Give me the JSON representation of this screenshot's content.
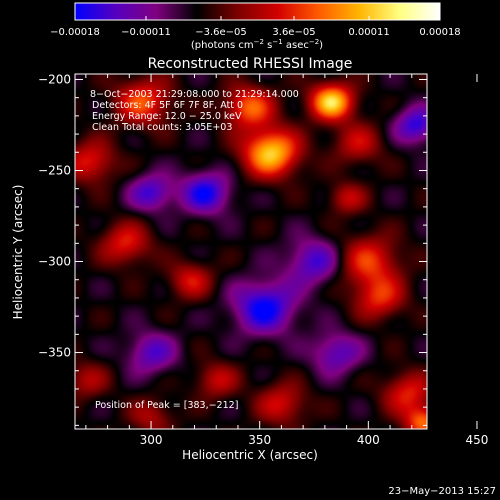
{
  "chart_data": {
    "type": "heatmap",
    "title": "Reconstructed RHESSI Image",
    "xlabel": "Heliocentric X (arcsec)",
    "ylabel": "Heliocentric Y (arcsec)",
    "xlim": [
      265,
      427
    ],
    "ylim": [
      -392,
      -197
    ],
    "x_ticks": [
      300,
      350,
      400,
      450
    ],
    "x_tick_labels": [
      "300",
      "350",
      "400",
      "450"
    ],
    "y_ticks": [
      -200,
      -250,
      -300,
      -350
    ],
    "y_tick_labels": [
      "−200",
      "−250",
      "−300",
      "−350"
    ],
    "colorbar": {
      "ticks": [
        -0.00018,
        -0.00011,
        -3.6e-05,
        3.6e-05,
        0.00011,
        0.00018
      ],
      "tick_labels": [
        "−0.00018",
        "−0.00011",
        "−3.6e−05",
        "3.6e−05",
        "0.00011",
        "0.00018"
      ],
      "range": [
        -0.00018,
        0.00018
      ],
      "unit_label": {
        "main": "(photons cm",
        "sup1": "−2",
        "mid1": " s",
        "sup2": "−1",
        "mid2": " asec",
        "sup3": "−2",
        "end": ")"
      },
      "colors": [
        "#0000ff",
        "#5500c0",
        "#800080",
        "#000000",
        "#7a0000",
        "#d20000",
        "#ff5a00",
        "#ffb400",
        "#ffff80",
        "#ffffff"
      ]
    },
    "annotations": [
      " 8−Oct−2003 21:29:08.000 to 21:29:14.000",
      "Detectors: 4F 5F 6F 7F 8F, Att 0",
      "Energy Range: 12.0 − 25.0 keV",
      "Clean    Total counts: 3.05E+03"
    ],
    "peak_label": "Position of Peak = [383,−212]",
    "peak": {
      "x": 383,
      "y": -212
    },
    "sources": [
      {
        "x": 355,
        "y": -240,
        "amp": 0.000175,
        "sigma": 9
      },
      {
        "x": 383,
        "y": -212,
        "amp": 0.00018,
        "sigma": 7
      },
      {
        "x": 345,
        "y": -215,
        "amp": 0.00012,
        "sigma": 8
      },
      {
        "x": 296,
        "y": -212,
        "amp": 0.00011,
        "sigma": 9
      },
      {
        "x": 272,
        "y": -245,
        "amp": 9e-05,
        "sigma": 8
      },
      {
        "x": 288,
        "y": -290,
        "amp": 9e-05,
        "sigma": 8
      },
      {
        "x": 318,
        "y": -310,
        "amp": 8e-05,
        "sigma": 7
      },
      {
        "x": 400,
        "y": -300,
        "amp": 0.0001,
        "sigma": 10
      },
      {
        "x": 405,
        "y": -320,
        "amp": 9e-05,
        "sigma": 8
      },
      {
        "x": 330,
        "y": -365,
        "amp": 7e-05,
        "sigma": 7
      },
      {
        "x": 360,
        "y": -378,
        "amp": 8e-05,
        "sigma": 8
      },
      {
        "x": 418,
        "y": -372,
        "amp": 9e-05,
        "sigma": 8
      },
      {
        "x": 425,
        "y": -388,
        "amp": 0.00012,
        "sigma": 6
      },
      {
        "x": 300,
        "y": -385,
        "amp": 6e-05,
        "sigma": 7
      },
      {
        "x": 270,
        "y": -365,
        "amp": 6e-05,
        "sigma": 7
      },
      {
        "x": 390,
        "y": -265,
        "amp": 7e-05,
        "sigma": 6
      },
      {
        "x": 395,
        "y": -235,
        "amp": 7e-05,
        "sigma": 8
      },
      {
        "x": 325,
        "y": -262,
        "amp": -0.00011,
        "sigma": 8
      },
      {
        "x": 300,
        "y": -262,
        "amp": -9e-05,
        "sigma": 7
      },
      {
        "x": 422,
        "y": -225,
        "amp": -0.0001,
        "sigma": 7
      },
      {
        "x": 352,
        "y": -325,
        "amp": -0.00012,
        "sigma": 10
      },
      {
        "x": 375,
        "y": -300,
        "amp": -9e-05,
        "sigma": 9
      },
      {
        "x": 300,
        "y": -350,
        "amp": -8e-05,
        "sigma": 8
      },
      {
        "x": 385,
        "y": -350,
        "amp": -8e-05,
        "sigma": 8
      }
    ]
  },
  "footer": {
    "timestamp": "23−May−2013 15:27"
  }
}
